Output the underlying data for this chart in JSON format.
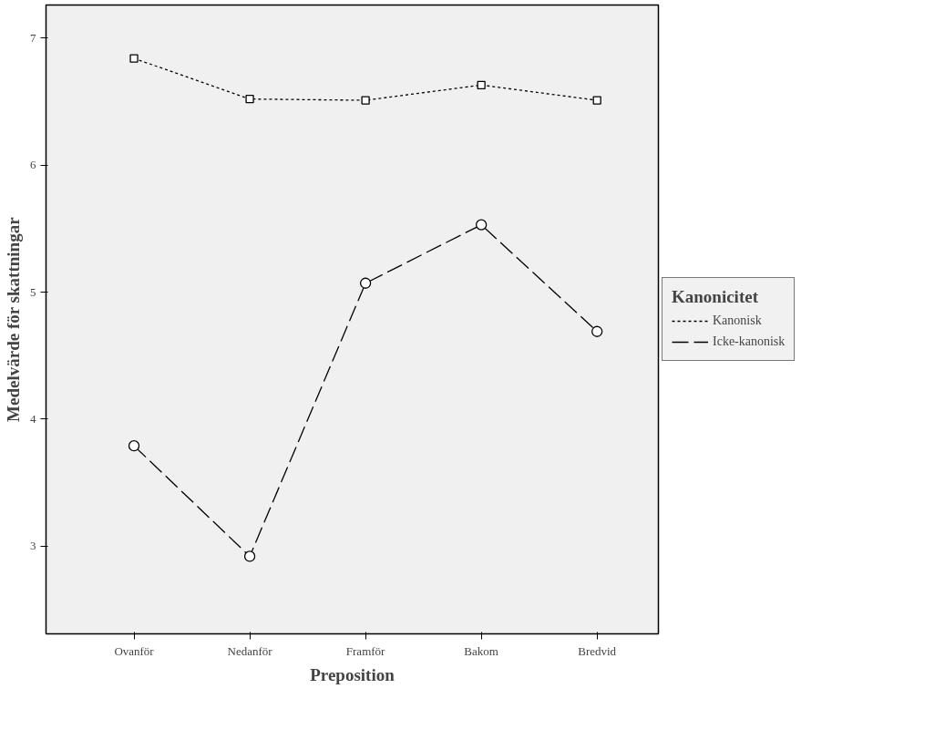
{
  "chart_data": {
    "type": "line",
    "xlabel": "Preposition",
    "ylabel": "Medelvärde för skattningar",
    "legend_title": "Kanonicitet",
    "categories": [
      "Ovanför",
      "Nedanför",
      "Framför",
      "Bakom",
      "Bredvid"
    ],
    "series": [
      {
        "name": "Kanonisk",
        "color": "#000000",
        "values": [
          6.84,
          6.52,
          6.51,
          6.63,
          6.51
        ],
        "marker": "square",
        "line_style": "dotted"
      },
      {
        "name": "Icke-kanonisk",
        "color": "#000000",
        "values": [
          3.79,
          2.92,
          5.07,
          5.53,
          4.69
        ],
        "marker": "circle",
        "line_style": "dashed"
      }
    ],
    "ylim": [
      2.31,
      7.26
    ],
    "yticks": [
      3,
      4,
      5,
      6,
      7
    ],
    "grid": false,
    "legend": "right"
  }
}
